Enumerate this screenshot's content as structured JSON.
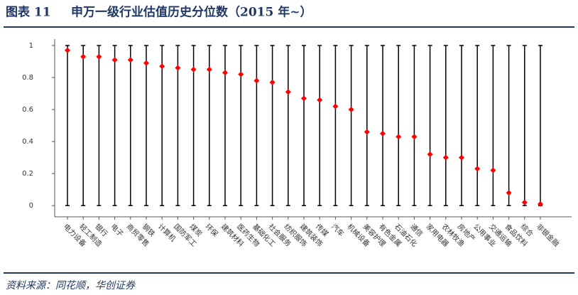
{
  "figure_label": "图表 11",
  "chart_data": {
    "type": "range-dot",
    "title": "申万一级行业估值历史分位数（2015 年~）",
    "categories": [
      "电力设备",
      "轻工制造",
      "银行",
      "电子",
      "商贸零售",
      "钢铁",
      "计算机",
      "国防军工",
      "煤炭",
      "环保",
      "建筑材料",
      "医药生物",
      "基础化工",
      "社会服务",
      "纺织服饰",
      "建筑装饰",
      "传媒",
      "汽车",
      "机械设备",
      "美容护理",
      "有色金属",
      "石油石化",
      "通信",
      "家用电器",
      "农林牧渔",
      "房地产",
      "公用事业",
      "交通运输",
      "食品饮料",
      "综合",
      "非银金融"
    ],
    "values": [
      0.97,
      0.93,
      0.93,
      0.91,
      0.91,
      0.89,
      0.87,
      0.86,
      0.85,
      0.85,
      0.83,
      0.82,
      0.78,
      0.77,
      0.71,
      0.67,
      0.66,
      0.62,
      0.6,
      0.46,
      0.45,
      0.43,
      0.43,
      0.32,
      0.3,
      0.3,
      0.23,
      0.22,
      0.08,
      0.02,
      0.01
    ],
    "range": [
      0,
      1
    ],
    "color": "#ff0000",
    "line_color": "#000000",
    "ylim": [
      -0.07,
      1.04
    ],
    "yticks": [
      0,
      0.2,
      0.4,
      0.6,
      0.8,
      1
    ]
  },
  "source": "资料来源：同花顺，华创证券"
}
